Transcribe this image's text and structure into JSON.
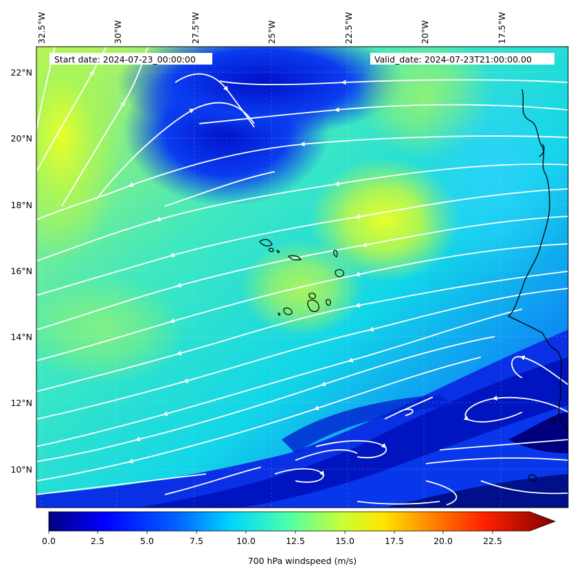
{
  "map": {
    "start_date": "Start date: 2024-07-23_00:00:00",
    "valid_date": "Valid_date: 2024-07-23T21:00:00.00",
    "lon_labels": [
      "32.5°W",
      "30°W",
      "27.5°W",
      "25°W",
      "22.5°W",
      "20°W",
      "17.5°W"
    ],
    "lat_labels": [
      "22°N",
      "20°N",
      "18°N",
      "16°N",
      "14°N",
      "12°N",
      "10°N"
    ],
    "colors": {
      "low": "#00007f",
      "mid": "#17e8d8",
      "high": "#c8ff35",
      "stream": "#ffffff",
      "coast": "#000000"
    }
  },
  "colorbar": {
    "ticks": [
      "0.0",
      "2.5",
      "5.0",
      "7.5",
      "10.0",
      "12.5",
      "15.0",
      "17.5",
      "20.0",
      "22.5"
    ],
    "label": "700 hPa windspeed (m/s)"
  }
}
